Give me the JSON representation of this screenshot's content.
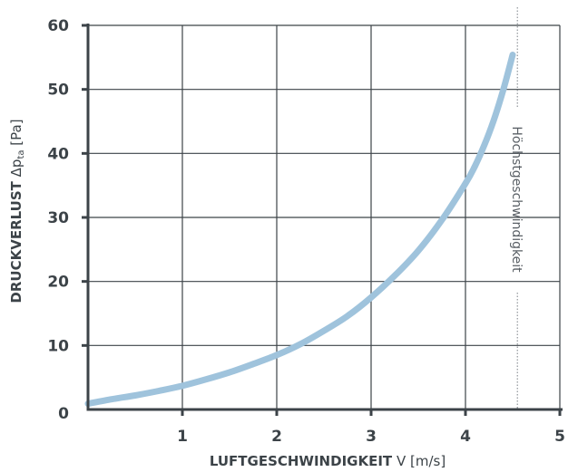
{
  "chart_data": {
    "type": "line",
    "xlabel": {
      "bold": "LUFTGESCHWINDIGKEIT",
      "symbol": "V",
      "unit": "[m/s]"
    },
    "ylabel": {
      "bold": "DRUCKVERLUST",
      "symbol": "Δp",
      "subscript": "ta",
      "unit": "[Pa]"
    },
    "xlim": [
      0,
      5
    ],
    "ylim": [
      0,
      60
    ],
    "x_ticks": [
      "1",
      "2",
      "3",
      "4",
      "5"
    ],
    "y_ticks": [
      "0",
      "10",
      "20",
      "30",
      "40",
      "50",
      "60"
    ],
    "grid": true,
    "series": [
      {
        "color": "#9fc3dc",
        "x": [
          0.0,
          0.25,
          0.5,
          0.75,
          1.0,
          1.25,
          1.5,
          1.75,
          2.0,
          2.25,
          2.5,
          2.75,
          3.0,
          3.25,
          3.5,
          3.75,
          4.0,
          4.1,
          4.2,
          4.3,
          4.4,
          4.5
        ],
        "y": [
          0.9,
          1.6,
          2.2,
          2.9,
          3.7,
          4.7,
          5.8,
          7.1,
          8.5,
          10.2,
          12.3,
          14.6,
          17.5,
          20.9,
          24.8,
          29.6,
          35.3,
          38.0,
          41.3,
          45.2,
          49.9,
          55.4
        ]
      }
    ],
    "annotation": {
      "text": "Höchstgeschwindigkeit",
      "x": 4.55
    }
  }
}
